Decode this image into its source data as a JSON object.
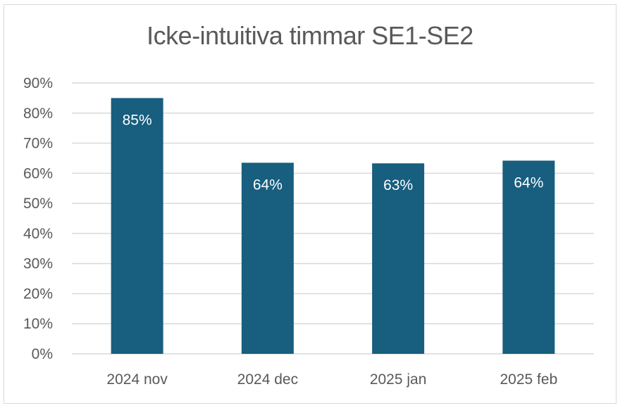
{
  "chart_data": {
    "type": "bar",
    "title": "Icke-intuitiva timmar SE1-SE2",
    "categories": [
      "2024 nov",
      "2024 dec",
      "2025 jan",
      "2025 feb"
    ],
    "values": [
      85,
      63.5,
      63.3,
      64.2
    ],
    "data_labels": [
      "85%",
      "64%",
      "63%",
      "64%"
    ],
    "y_ticks": [
      "0%",
      "10%",
      "20%",
      "30%",
      "40%",
      "50%",
      "60%",
      "70%",
      "80%",
      "90%"
    ],
    "ylim": [
      0,
      90
    ],
    "grid": true,
    "bar_color": "#175e7f",
    "grid_color": "#d9d9d9"
  }
}
